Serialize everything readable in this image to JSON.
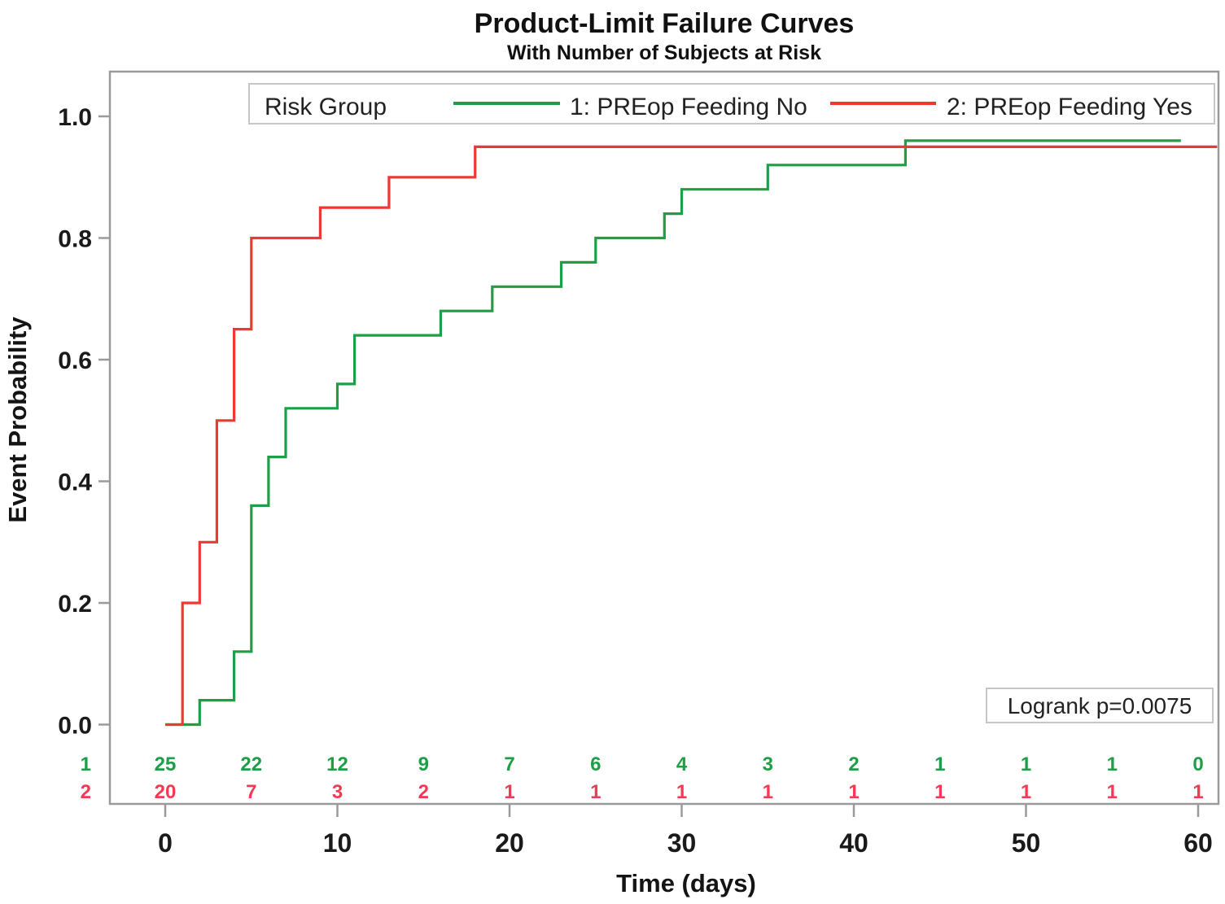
{
  "chart": {
    "title": "Product-Limit Failure Curves",
    "subtitle": "With Number of Subjects at Risk",
    "xlabel": "Time (days)",
    "ylabel": "Event Probability",
    "annotation": "Logrank p=0.0075",
    "legend_title": "Risk Group"
  },
  "chart_data": {
    "type": "line",
    "variant": "product-limit-failure-step-curves",
    "title": "Product-Limit Failure Curves",
    "subtitle": "With Number of Subjects at Risk",
    "xlabel": "Time (days)",
    "ylabel": "Event Probability",
    "xlim": [
      0,
      61
    ],
    "ylim": [
      0,
      1.07
    ],
    "x_ticks": [
      0,
      10,
      20,
      30,
      40,
      50,
      60
    ],
    "y_ticks": [
      0.0,
      0.2,
      0.4,
      0.6,
      0.8,
      1.0
    ],
    "grid": false,
    "legend_position": "top-inside",
    "annotation": "Logrank p=0.0075",
    "series": [
      {
        "name": "1: PREop Feeding No",
        "group_id": "1",
        "color": "#1e9e46",
        "number_color": "#1e9e46",
        "steps": [
          [
            0,
            0.0
          ],
          [
            2,
            0.04
          ],
          [
            4,
            0.12
          ],
          [
            5,
            0.36
          ],
          [
            6,
            0.44
          ],
          [
            7,
            0.52
          ],
          [
            10,
            0.56
          ],
          [
            11,
            0.64
          ],
          [
            16,
            0.68
          ],
          [
            19,
            0.72
          ],
          [
            23,
            0.76
          ],
          [
            25,
            0.8
          ],
          [
            29,
            0.84
          ],
          [
            30,
            0.88
          ],
          [
            35,
            0.92
          ],
          [
            43,
            0.96
          ]
        ],
        "end_time": 59
      },
      {
        "name": "2: PREop Feeding Yes",
        "group_id": "2",
        "color": "#ee3932",
        "number_color": "#f23a52",
        "steps": [
          [
            0,
            0.0
          ],
          [
            1,
            0.2
          ],
          [
            2,
            0.3
          ],
          [
            3,
            0.5
          ],
          [
            4,
            0.65
          ],
          [
            5,
            0.8
          ],
          [
            9,
            0.85
          ],
          [
            13,
            0.9
          ],
          [
            18,
            0.95
          ]
        ],
        "end_time": 61.1
      }
    ],
    "at_risk": {
      "times": [
        0,
        5,
        10,
        15,
        20,
        25,
        30,
        35,
        40,
        45,
        50,
        55,
        60
      ],
      "rows": [
        {
          "label": "1",
          "color": "#1e9e46",
          "values": [
            25,
            22,
            12,
            9,
            7,
            6,
            4,
            3,
            2,
            1,
            1,
            1,
            0
          ]
        },
        {
          "label": "2",
          "color": "#f23a52",
          "values": [
            20,
            7,
            3,
            2,
            1,
            1,
            1,
            1,
            1,
            1,
            1,
            1,
            1
          ]
        }
      ]
    }
  }
}
